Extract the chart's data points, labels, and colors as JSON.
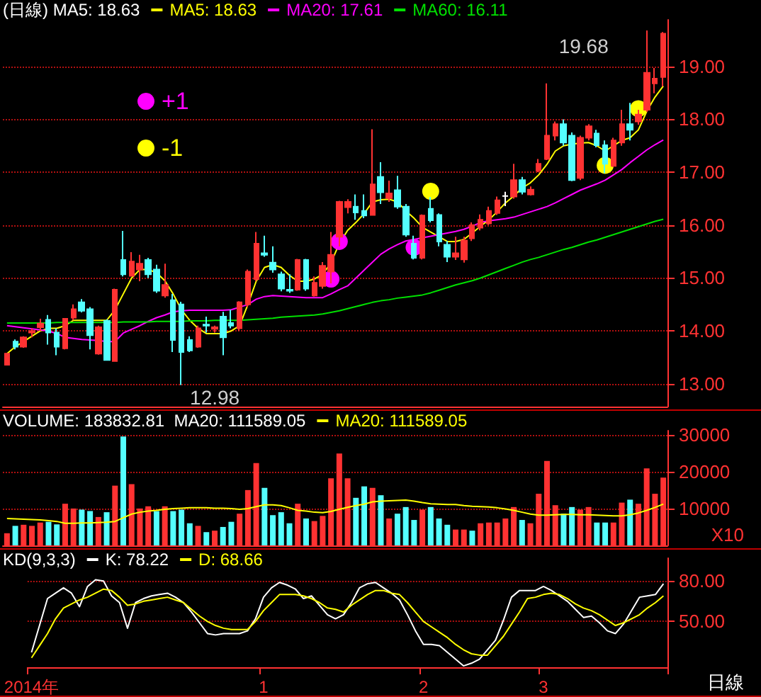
{
  "chart_data": [
    {
      "type": "candlestick",
      "title": "(日線) MA5: 18.63",
      "legend": "top left",
      "grid": "y",
      "marker": "none",
      "tick_labels": "y",
      "categories": [
        null,
        null,
        null,
        null,
        null,
        null,
        null,
        null,
        null,
        null,
        null,
        null,
        null,
        null,
        null,
        null,
        null,
        null,
        null,
        null,
        null,
        null,
        null,
        null,
        null,
        null,
        null,
        null,
        null,
        null,
        null,
        null,
        null,
        null,
        null,
        null,
        null,
        null,
        null,
        null,
        null,
        null,
        null,
        null,
        null,
        null,
        null,
        null,
        null,
        null,
        null,
        null,
        null,
        null,
        null,
        null,
        null,
        null,
        null,
        null,
        null,
        null,
        null,
        null,
        null,
        null,
        null,
        null,
        null,
        null,
        null,
        null,
        null,
        null,
        null,
        null,
        null,
        null,
        null,
        null
      ],
      "ylim": [
        12.57,
        19.88
      ],
      "yticks": [
        {
          "value": 13,
          "label": "13.00"
        },
        {
          "value": 14,
          "label": "14.00"
        },
        {
          "value": 15,
          "label": "15.00"
        },
        {
          "value": 16,
          "label": "16.00"
        },
        {
          "value": 17,
          "label": "17.00"
        },
        {
          "value": 18,
          "label": "18.00"
        },
        {
          "value": 19,
          "label": "19.00"
        }
      ],
      "annotations": [
        "19.68",
        "12.98"
      ],
      "ohlc": [
        [
          13.36,
          13.57,
          13.36,
          13.57
        ],
        [
          13.8,
          13.84,
          13.65,
          13.7
        ],
        [
          13.7,
          13.9,
          13.68,
          13.88
        ],
        [
          13.97,
          14.05,
          13.88,
          14.0
        ],
        [
          14.07,
          14.23,
          14.0,
          14.14
        ],
        [
          14.21,
          14.3,
          13.74,
          13.97
        ],
        [
          13.97,
          14.05,
          13.54,
          13.7
        ],
        [
          13.67,
          14.23,
          13.65,
          14.23
        ],
        [
          14.25,
          14.5,
          14.2,
          14.41
        ],
        [
          14.54,
          14.6,
          14.35,
          14.38
        ],
        [
          14.41,
          14.45,
          13.65,
          13.92
        ],
        [
          13.57,
          14.1,
          13.55,
          14.07
        ],
        [
          14.19,
          14.22,
          13.45,
          13.45
        ],
        [
          13.43,
          14.8,
          13.42,
          14.78
        ],
        [
          15.34,
          15.89,
          15.03,
          15.07
        ],
        [
          15.04,
          15.49,
          15.03,
          15.31
        ],
        [
          15.16,
          15.44,
          14.94,
          15.27
        ],
        [
          15.34,
          15.38,
          15.0,
          15.07
        ],
        [
          15.16,
          15.25,
          14.72,
          14.76
        ],
        [
          14.67,
          15.27,
          14.63,
          14.87
        ],
        [
          14.58,
          14.7,
          13.6,
          13.83
        ],
        [
          14.5,
          14.55,
          12.98,
          13.6
        ],
        [
          13.83,
          13.9,
          13.6,
          13.63
        ],
        [
          13.7,
          14.1,
          13.68,
          14.05
        ],
        [
          14.12,
          14.27,
          13.97,
          14.1
        ],
        [
          14.04,
          14.1,
          13.97,
          14.07
        ],
        [
          14.27,
          14.36,
          13.54,
          13.88
        ],
        [
          14.15,
          14.4,
          14.05,
          14.1
        ],
        [
          14.05,
          14.56,
          14.0,
          14.54
        ],
        [
          14.5,
          15.16,
          14.45,
          15.12
        ],
        [
          14.98,
          15.87,
          14.94,
          15.65
        ],
        [
          15.47,
          15.8,
          15.4,
          15.44
        ],
        [
          15.29,
          15.6,
          15.1,
          15.16
        ],
        [
          15.07,
          15.12,
          14.75,
          14.8
        ],
        [
          14.78,
          15.07,
          14.72,
          14.76
        ],
        [
          14.78,
          15.36,
          14.76,
          15.34
        ],
        [
          15.34,
          15.36,
          14.76,
          14.8
        ],
        [
          14.67,
          15.03,
          14.65,
          14.91
        ],
        [
          14.85,
          15.3,
          14.8,
          15.23
        ],
        [
          15.12,
          15.87,
          14.9,
          15.44
        ],
        [
          15.78,
          16.46,
          15.6,
          16.44
        ],
        [
          16.34,
          16.49,
          16.22,
          16.44
        ],
        [
          16.35,
          16.58,
          16.1,
          16.24
        ],
        [
          16.27,
          16.58,
          16.13,
          16.18
        ],
        [
          16.19,
          17.81,
          16.18,
          16.77
        ],
        [
          16.91,
          17.19,
          16.4,
          16.62
        ],
        [
          16.51,
          16.84,
          16.44,
          16.6
        ],
        [
          16.66,
          16.93,
          16.31,
          16.35
        ],
        [
          16.35,
          16.4,
          15.78,
          15.82
        ],
        [
          15.65,
          15.8,
          15.35,
          15.38
        ],
        [
          15.38,
          16.2,
          15.35,
          16.18
        ],
        [
          16.31,
          16.53,
          16.05,
          16.09
        ],
        [
          16.19,
          16.22,
          15.6,
          15.69
        ],
        [
          15.63,
          15.7,
          15.3,
          15.4
        ],
        [
          15.4,
          15.78,
          15.34,
          15.47
        ],
        [
          15.35,
          15.78,
          15.29,
          15.71
        ],
        [
          15.75,
          16.05,
          15.7,
          16.0
        ],
        [
          15.95,
          16.2,
          15.9,
          16.1
        ],
        [
          16.03,
          16.35,
          16.0,
          16.27
        ],
        [
          16.23,
          16.54,
          16.19,
          16.47
        ],
        [
          16.55,
          16.63,
          16.36,
          16.55
        ],
        [
          16.54,
          17.16,
          16.5,
          16.85
        ],
        [
          16.85,
          16.91,
          16.58,
          16.63
        ],
        [
          16.58,
          16.73,
          16.56,
          16.67
        ],
        [
          17.03,
          17.25,
          17.0,
          17.16
        ],
        [
          17.25,
          18.68,
          17.23,
          17.69
        ],
        [
          17.69,
          17.96,
          17.6,
          17.91
        ],
        [
          17.91,
          18.0,
          17.5,
          17.56
        ],
        [
          17.69,
          17.75,
          16.83,
          16.85
        ],
        [
          16.89,
          17.69,
          16.85,
          17.65
        ],
        [
          17.65,
          17.91,
          17.6,
          17.87
        ],
        [
          17.73,
          17.8,
          17.47,
          17.51
        ],
        [
          17.51,
          17.6,
          16.98,
          17.16
        ],
        [
          17.12,
          17.65,
          17.1,
          17.6
        ],
        [
          17.56,
          18.18,
          17.5,
          17.91
        ],
        [
          17.91,
          18.31,
          17.6,
          17.8
        ],
        [
          17.96,
          18.18,
          17.9,
          18.09
        ],
        [
          18.18,
          19.68,
          18.14,
          18.88
        ],
        [
          18.68,
          18.97,
          18.49,
          18.77
        ],
        [
          18.8,
          19.65,
          18.62,
          19.62
        ]
      ],
      "colors": [
        "#ff3232",
        "#54ffff",
        "#ff3232",
        "#ff3232",
        "#ff3232",
        "#54ffff",
        "#54ffff",
        "#ff3232",
        "#ff3232",
        "#54ffff",
        "#54ffff",
        "#ff3232",
        "#54ffff",
        "#ff3232",
        "#54ffff",
        "#ff3232",
        "#ff3232",
        "#54ffff",
        "#54ffff",
        "#ff3232",
        "#54ffff",
        "#54ffff",
        "#54ffff",
        "#ff3232",
        "#54ffff",
        "#ff3232",
        "#54ffff",
        "#54ffff",
        "#ff3232",
        "#ff3232",
        "#ff3232",
        "#54ffff",
        "#54ffff",
        "#54ffff",
        "#54ffff",
        "#ff3232",
        "#54ffff",
        "#ff3232",
        "#ff3232",
        "#ff3232",
        "#ff3232",
        "#ff3232",
        "#54ffff",
        "#54ffff",
        "#ff3232",
        "#54ffff",
        "#ff3232",
        "#54ffff",
        "#54ffff",
        "#54ffff",
        "#ff3232",
        "#54ffff",
        "#54ffff",
        "#54ffff",
        "#ff3232",
        "#ff3232",
        "#ff3232",
        "#ff3232",
        "#ff3232",
        "#ff3232",
        "#ffffff",
        "#ff3232",
        "#54ffff",
        "#ff3232",
        "#ff3232",
        "#ff3232",
        "#ff3232",
        "#54ffff",
        "#54ffff",
        "#ff3232",
        "#ff3232",
        "#54ffff",
        "#54ffff",
        "#ff3232",
        "#ff3232",
        "#54ffff",
        "#ff3232",
        "#ff3232",
        "#ff3232",
        "#ff3232"
      ],
      "series": [
        {
          "type": "line",
          "name": "MA5: 18.63",
          "color": "#ffff00",
          "values": [
            13.57,
            13.7,
            13.8,
            13.9,
            14.0,
            14.05,
            14.05,
            14.1,
            14.2,
            14.2,
            14.2,
            14.2,
            14.2,
            14.4,
            14.7,
            15.0,
            15.16,
            15.16,
            15.1,
            14.95,
            14.7,
            14.4,
            14.2,
            14.05,
            13.95,
            13.95,
            13.95,
            14.0,
            14.1,
            14.5,
            14.94,
            15.2,
            15.25,
            15.2,
            15.05,
            14.94,
            14.94,
            14.98,
            15.07,
            15.29,
            15.65,
            15.9,
            16.05,
            16.22,
            16.44,
            16.48,
            16.49,
            16.44,
            16.27,
            16.13,
            15.96,
            15.87,
            15.78,
            15.69,
            15.69,
            15.73,
            15.85,
            15.98,
            16.1,
            16.25,
            16.42,
            16.55,
            16.7,
            16.8,
            16.95,
            17.15,
            17.4,
            17.5,
            17.53,
            17.55,
            17.56,
            17.5,
            17.4,
            17.5,
            17.6,
            17.65,
            17.8,
            18.15,
            18.42,
            18.63
          ]
        },
        {
          "type": "line",
          "name": "MA20: 17.61",
          "color": "#ff00ff",
          "values": [
            14.1,
            14.08,
            14.06,
            14.04,
            14.02,
            14.0,
            13.95,
            13.88,
            13.86,
            13.84,
            13.83,
            13.82,
            13.8,
            13.8,
            13.96,
            14.03,
            14.1,
            14.18,
            14.25,
            14.3,
            14.36,
            14.38,
            14.39,
            14.39,
            14.39,
            14.39,
            14.39,
            14.4,
            14.45,
            14.5,
            14.6,
            14.65,
            14.67,
            14.66,
            14.65,
            14.64,
            14.63,
            14.63,
            14.63,
            14.7,
            14.78,
            14.85,
            15.0,
            15.15,
            15.3,
            15.45,
            15.55,
            15.63,
            15.7,
            15.73,
            15.76,
            15.79,
            15.82,
            15.85,
            15.88,
            15.92,
            15.98,
            16.05,
            16.08,
            16.1,
            16.12,
            16.15,
            16.2,
            16.25,
            16.3,
            16.35,
            16.42,
            16.5,
            16.58,
            16.66,
            16.72,
            16.78,
            16.85,
            16.95,
            17.05,
            17.18,
            17.3,
            17.42,
            17.52,
            17.61
          ]
        },
        {
          "type": "line",
          "name": "MA60: 16.11",
          "color": "#00e000",
          "values": [
            14.15,
            14.15,
            14.15,
            14.15,
            14.15,
            14.15,
            14.16,
            14.16,
            14.16,
            14.16,
            14.16,
            14.16,
            14.16,
            14.16,
            14.17,
            14.17,
            14.17,
            14.17,
            14.18,
            14.18,
            14.18,
            14.18,
            14.19,
            14.19,
            14.19,
            14.2,
            14.2,
            14.2,
            14.2,
            14.21,
            14.22,
            14.23,
            14.24,
            14.26,
            14.27,
            14.28,
            14.29,
            14.3,
            14.32,
            14.35,
            14.38,
            14.42,
            14.46,
            14.5,
            14.54,
            14.57,
            14.59,
            14.62,
            14.64,
            14.66,
            14.68,
            14.72,
            14.77,
            14.82,
            14.87,
            14.91,
            14.95,
            15.0,
            15.06,
            15.12,
            15.18,
            15.24,
            15.3,
            15.35,
            15.39,
            15.44,
            15.49,
            15.54,
            15.58,
            15.63,
            15.68,
            15.72,
            15.77,
            15.82,
            15.87,
            15.92,
            15.97,
            16.02,
            16.07,
            16.11
          ]
        },
        {
          "type": "scatter",
          "name": "+1",
          "color": "#ff00ff",
          "marker": "circle",
          "values": [
            null,
            null,
            null,
            null,
            null,
            null,
            null,
            null,
            null,
            null,
            null,
            null,
            null,
            null,
            null,
            null,
            null,
            null,
            null,
            null,
            null,
            null,
            null,
            null,
            null,
            null,
            null,
            null,
            null,
            null,
            null,
            null,
            null,
            null,
            null,
            null,
            null,
            null,
            null,
            14.98,
            15.69,
            null,
            null,
            null,
            null,
            null,
            null,
            null,
            null,
            15.58,
            null,
            null,
            null,
            null,
            null,
            null,
            null,
            null,
            null,
            null,
            null,
            null,
            null,
            null,
            null,
            null,
            null,
            null,
            null,
            null,
            null,
            null,
            null,
            null,
            null,
            null,
            null,
            null,
            null,
            null
          ]
        },
        {
          "type": "scatter",
          "name": "-1",
          "color": "#ffff00",
          "marker": "circle",
          "values": [
            null,
            null,
            null,
            null,
            null,
            null,
            null,
            null,
            null,
            null,
            null,
            null,
            null,
            null,
            null,
            null,
            null,
            null,
            null,
            null,
            null,
            null,
            null,
            null,
            null,
            null,
            null,
            null,
            null,
            null,
            null,
            null,
            null,
            null,
            null,
            null,
            null,
            null,
            null,
            null,
            null,
            null,
            null,
            null,
            null,
            null,
            null,
            null,
            null,
            null,
            null,
            16.64,
            null,
            null,
            null,
            null,
            null,
            null,
            null,
            null,
            null,
            null,
            null,
            null,
            null,
            null,
            null,
            null,
            null,
            null,
            null,
            null,
            17.13,
            null,
            null,
            null,
            18.2,
            null,
            null,
            null
          ]
        }
      ]
    },
    {
      "type": "bar",
      "title": "VOLUME: 183832.81  MA20: 111589.05",
      "legend": "top",
      "grid": "y",
      "marker": "none",
      "tick_labels": "y",
      "categories": [
        null,
        null,
        null,
        null,
        null,
        null,
        null,
        null,
        null,
        null,
        null,
        null,
        null,
        null,
        null,
        null,
        null,
        null,
        null,
        null,
        null,
        null,
        null,
        null,
        null,
        null,
        null,
        null,
        null,
        null,
        null,
        null,
        null,
        null,
        null,
        null,
        null,
        null,
        null,
        null,
        null,
        null,
        null,
        null,
        null,
        null,
        null,
        null,
        null,
        null,
        null,
        null,
        null,
        null,
        null,
        null,
        null,
        null,
        null,
        null,
        null,
        null,
        null,
        null,
        null,
        null,
        null,
        null,
        null,
        null,
        null,
        null,
        null,
        null,
        null,
        null,
        null,
        null,
        null,
        null
      ],
      "ylim": [
        0,
        31100
      ],
      "yticks": [
        10000,
        20000,
        30000
      ],
      "annotations": [
        "X10"
      ],
      "series": [
        {
          "type": "bar",
          "colors": [
            "#ff3232",
            "#54ffff",
            "#ff3232",
            "#ff3232",
            "#ff3232",
            "#54ffff",
            "#54ffff",
            "#ff3232",
            "#ff3232",
            "#54ffff",
            "#54ffff",
            "#ff3232",
            "#54ffff",
            "#ff3232",
            "#54ffff",
            "#ff3232",
            "#ff3232",
            "#ff3232",
            "#54ffff",
            "#ff3232",
            "#54ffff",
            "#54ffff",
            "#54ffff",
            "#ff3232",
            "#54ffff",
            "#ff3232",
            "#54ffff",
            "#54ffff",
            "#ff3232",
            "#ff3232",
            "#ff3232",
            "#54ffff",
            "#54ffff",
            "#54ffff",
            "#54ffff",
            "#ff3232",
            "#54ffff",
            "#ff3232",
            "#ff3232",
            "#ff3232",
            "#ff3232",
            "#ff3232",
            "#54ffff",
            "#54ffff",
            "#ff3232",
            "#54ffff",
            "#ff3232",
            "#54ffff",
            "#54ffff",
            "#54ffff",
            "#ff3232",
            "#54ffff",
            "#54ffff",
            "#54ffff",
            "#ff3232",
            "#ff3232",
            "#54ffff",
            "#ff3232",
            "#ff3232",
            "#ff3232",
            "#ff3232",
            "#ff3232",
            "#54ffff",
            "#ff3232",
            "#ff3232",
            "#ff3232",
            "#ff3232",
            "#54ffff",
            "#54ffff",
            "#ff3232",
            "#ff3232",
            "#54ffff",
            "#54ffff",
            "#ff3232",
            "#ff3232",
            "#54ffff",
            "#ff3232",
            "#ff3232",
            "#ff3232",
            "#ff3232"
          ],
          "values": [
            3300,
            5300,
            5600,
            5300,
            6200,
            6400,
            5700,
            11300,
            10000,
            9700,
            9300,
            7700,
            9000,
            16200,
            29500,
            16600,
            10000,
            10600,
            9300,
            10600,
            9300,
            9700,
            6000,
            5300,
            3600,
            4000,
            5000,
            6400,
            8600,
            15000,
            22300,
            15600,
            8200,
            9000,
            6000,
            11300,
            7300,
            6600,
            8000,
            18200,
            24900,
            18200,
            12900,
            16000,
            15600,
            13600,
            7300,
            8600,
            10400,
            6900,
            9700,
            10400,
            7300,
            5600,
            4300,
            4300,
            4000,
            6000,
            6200,
            6200,
            7300,
            10400,
            6900,
            6000,
            14000,
            22900,
            10900,
            8600,
            10400,
            9700,
            10400,
            6200,
            6200,
            6200,
            11600,
            12400,
            11300,
            20900,
            14000,
            18400
          ]
        },
        {
          "type": "line",
          "name": "MA20: 111589.05",
          "color": "#ffff00",
          "values": [
            7300,
            7200,
            7100,
            7000,
            6900,
            6700,
            6500,
            6000,
            6000,
            6100,
            6100,
            6200,
            6300,
            6500,
            7500,
            8500,
            9000,
            9300,
            9500,
            9800,
            10000,
            10100,
            10200,
            10200,
            10200,
            10100,
            10100,
            10000,
            9800,
            10000,
            10500,
            11000,
            11000,
            10800,
            10200,
            9500,
            9300,
            9000,
            8900,
            9200,
            9800,
            10300,
            10800,
            11200,
            11800,
            12000,
            12100,
            12200,
            12300,
            12000,
            11600,
            11300,
            11200,
            11100,
            11100,
            10800,
            10600,
            10500,
            10400,
            10200,
            9900,
            9500,
            9000,
            8500,
            8200,
            8200,
            8300,
            8400,
            8400,
            8300,
            8300,
            8200,
            8100,
            8000,
            8000,
            8300,
            8800,
            9500,
            10300,
            11200
          ]
        }
      ]
    },
    {
      "type": "line",
      "title": "KD(9,3,3)",
      "legend": "top left",
      "grid": "y",
      "marker": "none",
      "categories": [
        "2014年",
        null,
        null,
        null,
        null,
        null,
        null,
        null,
        null,
        null,
        null,
        null,
        null,
        null,
        null,
        null,
        null,
        null,
        null,
        null,
        null,
        null,
        null,
        null,
        null,
        null,
        null,
        null,
        null,
        "1",
        null,
        null,
        null,
        null,
        null,
        null,
        null,
        null,
        null,
        null,
        null,
        null,
        null,
        null,
        null,
        null,
        null,
        null,
        null,
        "2",
        null,
        null,
        null,
        null,
        null,
        null,
        null,
        null,
        null,
        null,
        null,
        null,
        null,
        null,
        "3",
        null,
        null,
        null,
        null,
        null,
        null,
        null,
        null,
        null,
        null,
        null,
        null,
        null,
        null,
        null
      ],
      "ylim": [
        16,
        97
      ],
      "yticks": [
        {
          "value": 50,
          "label": "50.00"
        },
        {
          "value": 80,
          "label": "80.00"
        }
      ],
      "annotations": [
        "日線"
      ],
      "series": [
        {
          "name": "K: 78.22",
          "color": "#ffffff",
          "values": [
            27,
            47,
            67,
            71,
            75,
            71,
            61,
            76,
            81,
            80,
            69,
            64,
            45,
            64,
            67,
            69,
            70,
            71,
            68,
            64,
            57,
            49,
            41,
            40,
            41,
            41,
            41,
            43,
            52,
            68,
            75,
            79,
            77,
            74,
            67,
            69,
            62,
            55,
            52,
            55,
            64,
            75,
            78,
            79,
            75,
            71,
            66,
            55,
            43,
            33,
            33,
            32,
            27,
            22,
            17,
            19,
            22,
            29,
            36,
            51,
            68,
            73,
            73,
            73,
            76,
            73,
            69,
            65,
            59,
            53,
            54,
            49,
            43,
            41,
            48,
            58,
            68,
            69,
            70,
            78
          ]
        },
        {
          "name": "D: 68.66",
          "color": "#ffff00",
          "values": [
            23,
            32,
            41,
            52,
            60,
            63,
            66,
            68,
            71,
            74,
            73,
            68,
            62,
            63,
            65,
            66,
            67,
            68,
            66,
            64,
            59,
            54,
            50,
            47,
            45,
            44,
            44,
            44,
            50,
            58,
            64,
            70,
            70,
            70,
            69,
            67,
            64,
            60,
            59,
            57,
            62,
            66,
            70,
            73,
            73,
            71,
            70,
            64,
            57,
            50,
            46,
            42,
            38,
            33,
            29,
            26,
            25,
            25,
            32,
            39,
            48,
            57,
            67,
            68,
            70,
            71,
            70,
            67,
            63,
            60,
            58,
            55,
            51,
            47,
            49,
            52,
            55,
            60,
            64,
            69
          ]
        }
      ]
    }
  ]
}
